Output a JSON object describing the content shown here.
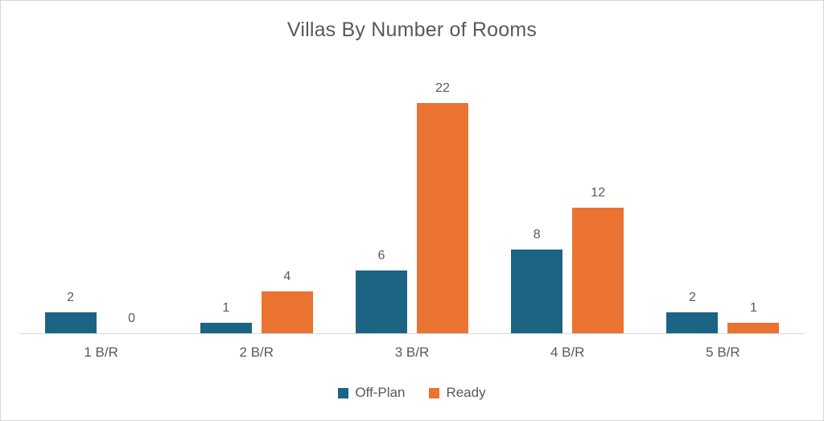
{
  "chart_data": {
    "type": "bar",
    "title": "Villas By Number of Rooms",
    "categories": [
      "1 B/R",
      "2 B/R",
      "3 B/R",
      "4 B/R",
      "5 B/R"
    ],
    "series": [
      {
        "name": "Off-Plan",
        "color": "#1C6484",
        "values": [
          2,
          1,
          6,
          8,
          2
        ]
      },
      {
        "name": "Ready",
        "color": "#EB7332",
        "values": [
          0,
          4,
          22,
          12,
          1
        ]
      }
    ],
    "xlabel": "",
    "ylabel": "",
    "ylim": [
      0,
      22
    ],
    "grid": false,
    "data_labels": true,
    "legend_position": "bottom"
  },
  "colors": {
    "label_text": "#595959",
    "axis_line": "#D9D9D9",
    "card_border": "#D6D6D6",
    "background": "#FFFFFF"
  }
}
